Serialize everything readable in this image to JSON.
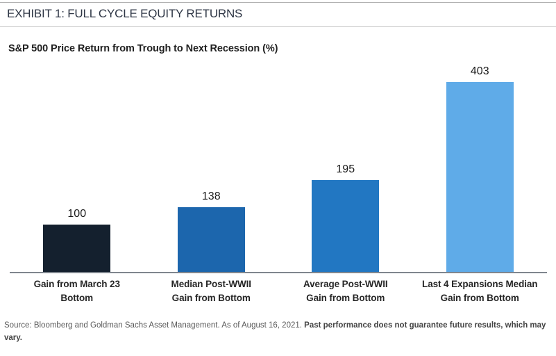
{
  "header": {
    "title": "EXHIBIT 1: FULL CYCLE EQUITY RETURNS"
  },
  "chart_data": {
    "type": "bar",
    "title": "S&P 500 Price Return from Trough to Next Recession (%)",
    "categories": [
      "Gain from March 23 Bottom",
      "Median Post-WWII Gain from Bottom",
      "Average Post-WWII Gain from Bottom",
      "Last 4 Expansions Median Gain from Bottom"
    ],
    "category_lines": [
      [
        "Gain from March 23",
        "Bottom"
      ],
      [
        "Median Post-WWII",
        "Gain from Bottom"
      ],
      [
        "Average Post-WWII",
        "Gain from Bottom"
      ],
      [
        "Last 4 Expansions Median",
        "Gain from Bottom"
      ]
    ],
    "values": [
      100,
      138,
      195,
      403
    ],
    "bar_colors": [
      "#14202e",
      "#1c66ad",
      "#2277c2",
      "#5fabe8"
    ],
    "value_labels": [
      "100",
      "138",
      "195",
      "403"
    ],
    "xlabel": "",
    "ylabel": "",
    "ylim": [
      0,
      420
    ],
    "y_axis_visible": false,
    "grid": false,
    "legend": "none",
    "axis_line_color": "#7f868e"
  },
  "footer": {
    "source_text": "Source: Bloomberg and Goldman Sachs Asset Management. As of August 16, 2021. ",
    "disclaimer_bold": "Past performance does not guarantee future results, which may vary."
  }
}
